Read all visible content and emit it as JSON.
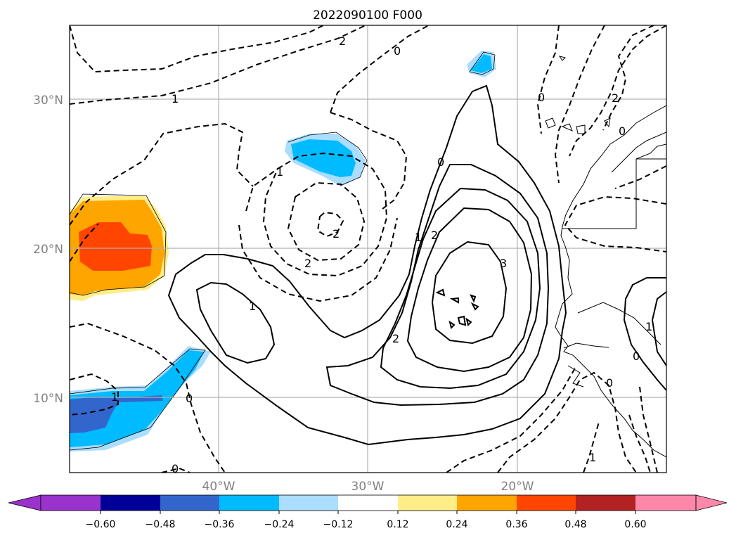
{
  "title": "2022090100 F000",
  "axes": {
    "lat_labels": [
      "30°N",
      "20°N",
      "10°N"
    ],
    "lon_labels": [
      "40°W",
      "30°W",
      "20°W"
    ]
  },
  "colorbar": {
    "tick_labels": [
      "−0.60",
      "−0.48",
      "−0.36",
      "−0.24",
      "−0.12",
      "0.12",
      "0.24",
      "0.36",
      "0.48",
      "0.60"
    ],
    "colors": [
      "#9933cc",
      "#000099",
      "#3366cc",
      "#00bbff",
      "#aaddff",
      "#ffffff",
      "#ffee88",
      "#ffa500",
      "#ff4500",
      "#b22222",
      "#ff88aa"
    ]
  },
  "contour_labels": [
    "2",
    "0",
    "1",
    "1",
    "2",
    "2",
    "0",
    "1",
    "2",
    "3",
    "2",
    "1",
    "0",
    "0",
    "2",
    "0",
    "1",
    "1",
    "0",
    "0",
    "1",
    "0"
  ]
}
